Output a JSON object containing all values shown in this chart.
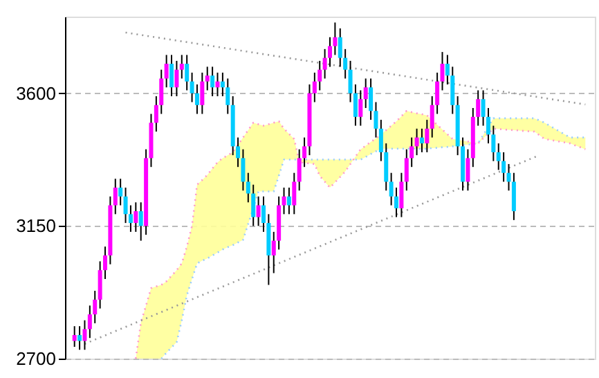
{
  "chart_data": {
    "type": "candlestick",
    "ylim": [
      2700,
      3860
    ],
    "yticks": [
      2700,
      3150,
      3600
    ],
    "grid": "y",
    "tick_labels": "y",
    "categories": [
      null,
      null,
      null,
      null,
      null,
      null,
      null,
      null,
      null,
      null,
      null,
      null,
      null,
      null,
      null,
      null,
      null,
      null,
      null,
      null,
      null,
      null,
      null,
      null,
      null,
      null,
      null,
      null,
      null,
      null,
      null,
      null,
      null,
      null,
      null,
      null,
      null,
      null,
      null,
      null,
      null,
      null,
      null,
      null,
      null,
      null,
      null,
      null,
      null,
      null,
      null,
      null,
      null,
      null,
      null,
      null,
      null,
      null,
      null,
      null,
      null,
      null,
      null,
      null,
      null,
      null,
      null,
      null,
      null,
      null,
      null,
      null,
      null,
      null,
      null,
      null,
      null,
      null,
      null,
      null,
      null,
      null,
      null,
      null,
      null,
      null,
      null,
      null,
      null,
      null,
      null,
      null,
      null,
      null,
      null,
      null,
      null,
      null,
      null,
      null,
      null
    ],
    "series": [
      {
        "type": "line",
        "color": "#ff99cc",
        "line_style": "dotted",
        "values": [
          null,
          null,
          null,
          null,
          null,
          null,
          null,
          null,
          null,
          null,
          null,
          null,
          2700,
          2822,
          2880,
          2939,
          2945,
          2950,
          2962,
          2981,
          3000,
          3023,
          3080,
          3150,
          3290,
          3306,
          3323,
          3345,
          3366,
          3380,
          3390,
          3400,
          3425,
          3450,
          3475,
          3500,
          3495,
          3490,
          3495,
          3500,
          3505,
          3480,
          3462,
          3445,
          3366,
          3364,
          3362,
          3360,
          3320,
          3300,
          3280,
          3298,
          3316,
          3335,
          3360,
          3385,
          3410,
          3422,
          3435,
          3447,
          3460,
          3475,
          3490,
          3505,
          3522,
          3540,
          3536,
          3532,
          3529,
          3525,
          3509,
          3493,
          3477,
          3461,
          3445,
          3442,
          3439,
          3436,
          3433,
          3430,
          3447,
          3463,
          3480,
          3479,
          3477,
          3476,
          3475,
          3474,
          3472,
          3471,
          3470,
          3458,
          3445,
          3442,
          3439,
          3436,
          3433,
          3430,
          3423,
          3417,
          3410
        ],
        "upper": [
          null,
          null,
          null,
          null,
          null,
          null,
          null,
          null,
          null,
          null,
          null,
          null,
          2700,
          2822,
          2880,
          2939,
          2945,
          2950,
          2962,
          2981,
          3000,
          3023,
          3080,
          3150,
          3290,
          3306,
          3323,
          3345,
          3366,
          3380,
          3390,
          3400,
          3425,
          3450,
          3475,
          3500,
          3495,
          3490,
          3495,
          3500,
          3505,
          3480,
          3462,
          3445,
          3366,
          3364,
          3362,
          3360,
          3320,
          3300,
          3280,
          3298,
          3316,
          3335,
          3360,
          3385,
          3410,
          3422,
          3435,
          3447,
          3460,
          3475,
          3490,
          3505,
          3522,
          3540,
          3536,
          3532,
          3529,
          3525,
          3509,
          3493,
          3477,
          3461,
          3445,
          3442,
          3439,
          3436,
          3433,
          3430,
          3447,
          3463,
          3480,
          3479,
          3477,
          3476,
          3475,
          3474,
          3472,
          3471,
          3470,
          3458,
          3445,
          3442,
          3439,
          3436,
          3433,
          3430,
          3423,
          3417,
          3410
        ],
        "lower": [
          null,
          null,
          null,
          null,
          null,
          null,
          null,
          null,
          null,
          null,
          null,
          null,
          2700,
          2700,
          2700,
          2700,
          2700,
          2700,
          2720,
          2738,
          2756,
          2830,
          2915,
          2970,
          3023,
          3032,
          3040,
          3050,
          3060,
          3070,
          3078,
          3085,
          3094,
          3103,
          3157,
          3210,
          3267,
          3267,
          3267,
          3267,
          3320,
          3375,
          3375,
          3375,
          3375,
          3375,
          3375,
          3375,
          3375,
          3375,
          3375,
          3375,
          3375,
          3375,
          3375,
          3375,
          3375,
          3384,
          3394,
          3403,
          3412,
          3412,
          3412,
          3412,
          3412,
          3412,
          3412,
          3412,
          3412,
          3412,
          3414,
          3415,
          3417,
          3418,
          3420,
          3422,
          3424,
          3426,
          3428,
          3430,
          3458,
          3487,
          3515,
          3515,
          3515,
          3515,
          3515,
          3515,
          3515,
          3515,
          3515,
          3508,
          3500,
          3490,
          3480,
          3470,
          3460,
          3450,
          3450,
          3450,
          3450
        ]
      },
      {
        "type": "line",
        "color": "#99ccff",
        "line_style": "dotted",
        "values": [
          null,
          null,
          null,
          null,
          null,
          null,
          null,
          null,
          null,
          null,
          null,
          null,
          null,
          null,
          null,
          null,
          null,
          2700,
          2720,
          2738,
          2756,
          2830,
          2915,
          2970,
          3023,
          3032,
          3040,
          3050,
          3060,
          3070,
          3078,
          3085,
          3094,
          3103,
          3157,
          3210,
          3267,
          3267,
          3267,
          3267,
          3320,
          3375,
          3375,
          3375,
          3375,
          3375,
          3375,
          3375,
          3375,
          3375,
          3375,
          3375,
          3375,
          3375,
          3375,
          3375,
          3375,
          3384,
          3394,
          3403,
          3412,
          3412,
          3412,
          3412,
          3412,
          3412,
          3412,
          3412,
          3412,
          3412,
          3414,
          3415,
          3417,
          3418,
          3420,
          3422,
          3424,
          3426,
          3428,
          3430,
          3458,
          3487,
          3515,
          3515,
          3515,
          3515,
          3515,
          3515,
          3515,
          3515,
          3515,
          3508,
          3500,
          3490,
          3480,
          3470,
          3460,
          3450,
          3450,
          3450,
          3450
        ]
      },
      {
        "type": "line",
        "color": "#999999",
        "line_style": "dotted",
        "values": [
          null,
          null,
          null,
          null,
          null,
          null,
          null,
          null,
          null,
          null,
          3806,
          null,
          null,
          null,
          null,
          null,
          null,
          null,
          null,
          null,
          null,
          null,
          null,
          null,
          null,
          null,
          null,
          null,
          null,
          null,
          null,
          null,
          null,
          null,
          null,
          null,
          null,
          null,
          null,
          null,
          null,
          null,
          null,
          null,
          null,
          null,
          null,
          null,
          null,
          null,
          null,
          null,
          null,
          null,
          null,
          null,
          null,
          null,
          null,
          null,
          null,
          null,
          null,
          null,
          null,
          null,
          null,
          null,
          null,
          null,
          null,
          null,
          null,
          null,
          null,
          null,
          null,
          null,
          null,
          null,
          null,
          null,
          null,
          null,
          null,
          null,
          null,
          null,
          null,
          null,
          null,
          null,
          null,
          null,
          null,
          null,
          null,
          null,
          null,
          null,
          3562
        ]
      },
      {
        "type": "line",
        "color": "#999999",
        "line_style": "dotted",
        "values": [
          null,
          null,
          2750,
          null,
          null,
          null,
          null,
          null,
          null,
          null,
          null,
          null,
          null,
          null,
          null,
          null,
          null,
          null,
          null,
          null,
          null,
          null,
          null,
          null,
          null,
          null,
          null,
          null,
          null,
          null,
          null,
          null,
          null,
          null,
          null,
          null,
          null,
          null,
          null,
          null,
          null,
          null,
          null,
          null,
          null,
          null,
          null,
          null,
          null,
          null,
          null,
          null,
          null,
          null,
          null,
          null,
          null,
          null,
          null,
          null,
          null,
          null,
          null,
          null,
          null,
          null,
          null,
          null,
          null,
          null,
          null,
          null,
          null,
          null,
          null,
          null,
          null,
          null,
          null,
          null,
          null,
          null,
          null,
          null,
          null,
          null,
          null,
          null,
          null,
          null,
          null,
          3390,
          null,
          null,
          null,
          null,
          null,
          null,
          null,
          null,
          null
        ]
      },
      {
        "ohlc": [
          [
            2760,
            2810,
            2740,
            2780
          ],
          [
            2780,
            2810,
            2730,
            2760
          ],
          [
            2760,
            2830,
            2730,
            2800
          ],
          [
            2800,
            2880,
            2770,
            2850
          ],
          [
            2850,
            2930,
            2820,
            2900
          ],
          [
            2900,
            3030,
            2870,
            3000
          ],
          [
            3000,
            3080,
            2970,
            3050
          ],
          [
            3050,
            3250,
            3020,
            3220
          ],
          [
            3220,
            3310,
            3190,
            3280
          ],
          [
            3280,
            3310,
            3220,
            3250
          ],
          [
            3250,
            3280,
            3160,
            3190
          ],
          [
            3190,
            3220,
            3130,
            3160
          ],
          [
            3160,
            3230,
            3130,
            3200
          ],
          [
            3200,
            3230,
            3100,
            3150
          ],
          [
            3150,
            3410,
            3120,
            3380
          ],
          [
            3380,
            3530,
            3350,
            3500
          ],
          [
            3500,
            3590,
            3470,
            3560
          ],
          [
            3560,
            3680,
            3530,
            3650
          ],
          [
            3650,
            3730,
            3620,
            3700
          ],
          [
            3700,
            3730,
            3590,
            3620
          ],
          [
            3620,
            3710,
            3590,
            3680
          ],
          [
            3680,
            3730,
            3650,
            3700
          ],
          [
            3700,
            3730,
            3610,
            3640
          ],
          [
            3640,
            3670,
            3570,
            3600
          ],
          [
            3600,
            3630,
            3530,
            3560
          ],
          [
            3560,
            3670,
            3530,
            3640
          ],
          [
            3640,
            3690,
            3610,
            3660
          ],
          [
            3660,
            3690,
            3590,
            3620
          ],
          [
            3620,
            3670,
            3590,
            3640
          ],
          [
            3640,
            3670,
            3590,
            3620
          ],
          [
            3620,
            3650,
            3530,
            3560
          ],
          [
            3560,
            3590,
            3390,
            3420
          ],
          [
            3420,
            3450,
            3350,
            3380
          ],
          [
            3380,
            3410,
            3270,
            3300
          ],
          [
            3300,
            3330,
            3230,
            3260
          ],
          [
            3260,
            3290,
            3150,
            3180
          ],
          [
            3180,
            3250,
            3150,
            3220
          ],
          [
            3220,
            3250,
            3130,
            3160
          ],
          [
            3160,
            3190,
            2950,
            3050
          ],
          [
            3050,
            3130,
            2990,
            3100
          ],
          [
            3100,
            3250,
            3070,
            3220
          ],
          [
            3220,
            3280,
            3190,
            3250
          ],
          [
            3250,
            3280,
            3190,
            3220
          ],
          [
            3220,
            3330,
            3190,
            3300
          ],
          [
            3300,
            3410,
            3270,
            3380
          ],
          [
            3380,
            3450,
            3350,
            3420
          ],
          [
            3420,
            3630,
            3390,
            3600
          ],
          [
            3600,
            3670,
            3570,
            3640
          ],
          [
            3640,
            3710,
            3610,
            3680
          ],
          [
            3680,
            3750,
            3650,
            3720
          ],
          [
            3720,
            3790,
            3690,
            3760
          ],
          [
            3760,
            3840,
            3730,
            3790
          ],
          [
            3790,
            3820,
            3690,
            3720
          ],
          [
            3720,
            3750,
            3650,
            3680
          ],
          [
            3680,
            3710,
            3570,
            3600
          ],
          [
            3600,
            3630,
            3490,
            3520
          ],
          [
            3520,
            3610,
            3490,
            3580
          ],
          [
            3580,
            3650,
            3550,
            3620
          ],
          [
            3620,
            3650,
            3510,
            3540
          ],
          [
            3540,
            3570,
            3450,
            3480
          ],
          [
            3480,
            3510,
            3370,
            3400
          ],
          [
            3400,
            3430,
            3270,
            3300
          ],
          [
            3300,
            3330,
            3220,
            3250
          ],
          [
            3250,
            3280,
            3180,
            3210
          ],
          [
            3210,
            3330,
            3180,
            3300
          ],
          [
            3300,
            3410,
            3270,
            3380
          ],
          [
            3380,
            3450,
            3350,
            3420
          ],
          [
            3420,
            3480,
            3390,
            3450
          ],
          [
            3450,
            3480,
            3400,
            3430
          ],
          [
            3430,
            3510,
            3400,
            3480
          ],
          [
            3480,
            3590,
            3450,
            3560
          ],
          [
            3560,
            3670,
            3530,
            3640
          ],
          [
            3640,
            3740,
            3610,
            3700
          ],
          [
            3700,
            3730,
            3630,
            3660
          ],
          [
            3660,
            3690,
            3530,
            3560
          ],
          [
            3560,
            3590,
            3390,
            3420
          ],
          [
            3420,
            3450,
            3270,
            3300
          ],
          [
            3300,
            3410,
            3270,
            3380
          ],
          [
            3380,
            3550,
            3350,
            3520
          ],
          [
            3520,
            3610,
            3490,
            3580
          ],
          [
            3580,
            3610,
            3490,
            3520
          ],
          [
            3520,
            3550,
            3430,
            3460
          ],
          [
            3460,
            3490,
            3370,
            3400
          ],
          [
            3400,
            3430,
            3340,
            3370
          ],
          [
            3370,
            3400,
            3300,
            3330
          ],
          [
            3330,
            3360,
            3270,
            3300
          ],
          [
            3300,
            3330,
            3170,
            3200
          ],
          null,
          null,
          null,
          null,
          null,
          null,
          null,
          null,
          null,
          null,
          null,
          null,
          null,
          null
        ],
        "colors": [
          "#ff00ff",
          "#00ccff",
          "#ff00ff",
          "#ff00ff",
          "#ff00ff",
          "#ff00ff",
          "#ff00ff",
          "#ff00ff",
          "#ff00ff",
          "#00ccff",
          "#00ccff",
          "#00ccff",
          "#ff00ff",
          "#00ccff",
          "#ff00ff",
          "#ff00ff",
          "#ff00ff",
          "#ff00ff",
          "#ff00ff",
          "#00ccff",
          "#ff00ff",
          "#ff00ff",
          "#00ccff",
          "#00ccff",
          "#00ccff",
          "#ff00ff",
          "#ff00ff",
          "#00ccff",
          "#ff00ff",
          "#00ccff",
          "#00ccff",
          "#00ccff",
          "#00ccff",
          "#00ccff",
          "#00ccff",
          "#00ccff",
          "#ff00ff",
          "#00ccff",
          "#00ccff",
          "#ff00ff",
          "#ff00ff",
          "#ff00ff",
          "#00ccff",
          "#ff00ff",
          "#ff00ff",
          "#ff00ff",
          "#ff00ff",
          "#ff00ff",
          "#ff00ff",
          "#ff00ff",
          "#ff00ff",
          "#ff00ff",
          "#00ccff",
          "#00ccff",
          "#00ccff",
          "#00ccff",
          "#ff00ff",
          "#ff00ff",
          "#00ccff",
          "#00ccff",
          "#00ccff",
          "#00ccff",
          "#00ccff",
          "#00ccff",
          "#ff00ff",
          "#ff00ff",
          "#ff00ff",
          "#ff00ff",
          "#00ccff",
          "#ff00ff",
          "#ff00ff",
          "#ff00ff",
          "#ff00ff",
          "#00ccff",
          "#00ccff",
          "#00ccff",
          "#00ccff",
          "#ff00ff",
          "#ff00ff",
          "#ff00ff",
          "#00ccff",
          "#00ccff",
          "#00ccff",
          "#00ccff",
          "#00ccff",
          "#00ccff",
          "#00ccff",
          null,
          null,
          null,
          null,
          null,
          null,
          null,
          null,
          null,
          null,
          null,
          null,
          null,
          null
        ]
      }
    ]
  }
}
